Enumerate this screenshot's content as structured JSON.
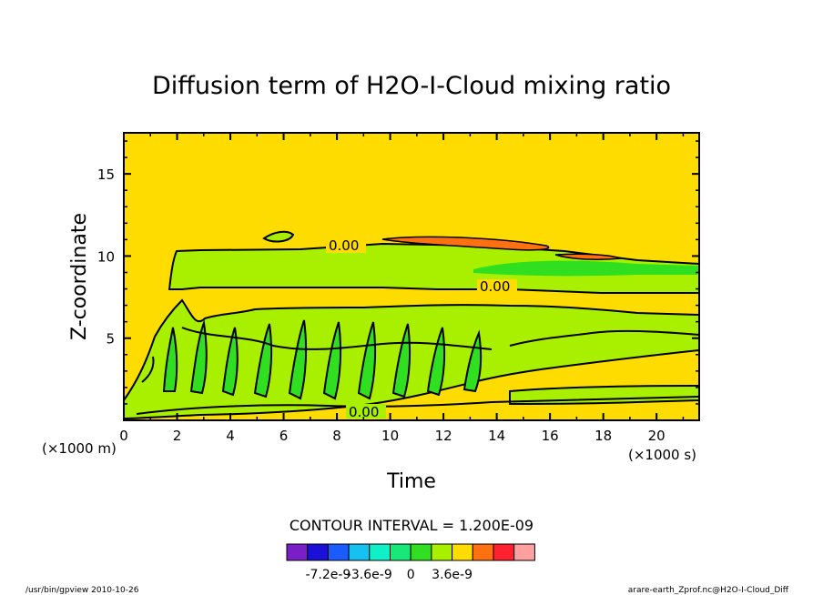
{
  "chart_data": {
    "type": "heatmap",
    "title": "Diffusion term of H2O-I-Cloud mixing ratio",
    "xlabel": "Time",
    "ylabel": "Z-coordinate",
    "x_unit": "(×1000 s)",
    "y_unit": "(×1000 m)",
    "xlim": [
      0,
      21.6
    ],
    "ylim": [
      0,
      17.5
    ],
    "x_ticks": [
      0,
      2,
      4,
      6,
      8,
      10,
      12,
      14,
      16,
      18,
      20
    ],
    "y_ticks": [
      5,
      10,
      15
    ],
    "contour_interval": "CONTOUR INTERVAL = 1.200E-09",
    "contour_labels": [
      "0.00",
      "0.00",
      "0.00"
    ],
    "colorbar": {
      "colors": [
        "#7a1fc8",
        "#1a10d8",
        "#1a5cff",
        "#16c0f0",
        "#10f0c8",
        "#18e878",
        "#30e020",
        "#a8f000",
        "#ffdc00",
        "#ff7010",
        "#ff2030",
        "#ffa0a0"
      ],
      "tick_labels": [
        "-7.2e-9",
        "-3.6e-9",
        "0",
        "3.6e-9"
      ]
    },
    "footer_left": "/usr/bin/gpview   2010-10-26",
    "footer_right": "arare-earth_Zprof.nc@H2O-I-Cloud_Diff"
  }
}
